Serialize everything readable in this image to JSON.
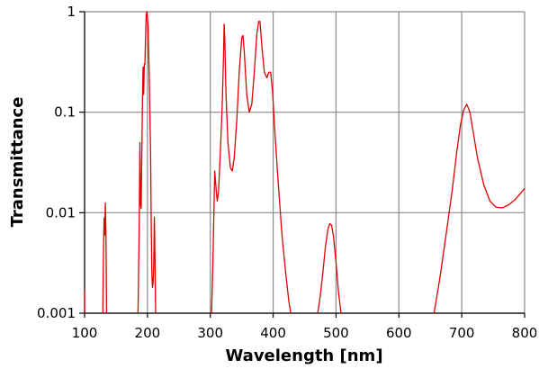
{
  "chart_data": {
    "type": "line",
    "xlabel": "Wavelength [nm]",
    "ylabel": "Transmittance",
    "xlim": [
      100,
      800
    ],
    "ylim": [
      0.001,
      1
    ],
    "yscale": "log",
    "grid": true,
    "x_tick_labels": [
      "100",
      "200",
      "300",
      "400",
      "500",
      "600",
      "700",
      "800"
    ],
    "y_tick_labels": [
      "0.001",
      "0.01",
      "0.1",
      "1"
    ],
    "series": [
      {
        "color": "#e00000",
        "segments": [
          [
            [
              100,
              0.0017
            ],
            [
              100,
              0.001
            ]
          ],
          [
            [
              129,
              0.001
            ],
            [
              130,
              0.004
            ],
            [
              131,
              0.0088
            ],
            [
              132,
              0.006
            ],
            [
              133,
              0.0125
            ],
            [
              134,
              0.006
            ],
            [
              135,
              0.001
            ]
          ],
          [
            [
              185,
              0.001
            ],
            [
              187,
              0.008
            ],
            [
              188,
              0.05
            ],
            [
              189,
              0.012
            ],
            [
              190,
              0.011
            ],
            [
              192,
              0.12
            ],
            [
              193,
              0.28
            ],
            [
              194,
              0.15
            ],
            [
              195,
              0.3
            ],
            [
              196,
              0.3
            ],
            [
              197,
              0.55
            ],
            [
              198,
              0.92
            ],
            [
              199,
              1.0
            ],
            [
              201,
              0.75
            ],
            [
              203,
              0.2
            ],
            [
              205,
              0.04
            ],
            [
              206,
              0.008
            ],
            [
              207,
              0.0025
            ],
            [
              208,
              0.0018
            ],
            [
              209,
              0.002
            ],
            [
              210,
              0.003
            ],
            [
              211,
              0.009
            ],
            [
              212,
              0.0035
            ],
            [
              213,
              0.001
            ]
          ],
          [
            [
              302,
              0.001
            ],
            [
              304,
              0.003
            ],
            [
              306,
              0.012
            ],
            [
              307,
              0.026
            ],
            [
              309,
              0.018
            ],
            [
              311,
              0.013
            ],
            [
              313,
              0.016
            ],
            [
              316,
              0.04
            ],
            [
              319,
              0.12
            ],
            [
              321,
              0.35
            ],
            [
              322,
              0.75
            ],
            [
              323,
              0.55
            ],
            [
              325,
              0.15
            ],
            [
              328,
              0.05
            ],
            [
              332,
              0.028
            ],
            [
              335,
              0.026
            ],
            [
              338,
              0.035
            ],
            [
              342,
              0.08
            ],
            [
              346,
              0.25
            ],
            [
              350,
              0.55
            ],
            [
              352,
              0.58
            ],
            [
              354,
              0.4
            ],
            [
              358,
              0.15
            ],
            [
              362,
              0.1
            ],
            [
              366,
              0.12
            ],
            [
              370,
              0.25
            ],
            [
              374,
              0.6
            ],
            [
              377,
              0.8
            ],
            [
              379,
              0.8
            ],
            [
              382,
              0.45
            ],
            [
              386,
              0.25
            ],
            [
              390,
              0.22
            ],
            [
              393,
              0.25
            ],
            [
              396,
              0.25
            ],
            [
              399,
              0.16
            ],
            [
              403,
              0.06
            ],
            [
              408,
              0.02
            ],
            [
              414,
              0.006
            ],
            [
              420,
              0.0025
            ],
            [
              425,
              0.0013
            ],
            [
              428,
              0.001
            ]
          ],
          [
            [
              471,
              0.001
            ],
            [
              475,
              0.0015
            ],
            [
              479,
              0.0025
            ],
            [
              483,
              0.0045
            ],
            [
              487,
              0.0068
            ],
            [
              490,
              0.0078
            ],
            [
              493,
              0.0075
            ],
            [
              496,
              0.0058
            ],
            [
              500,
              0.0032
            ],
            [
              504,
              0.0016
            ],
            [
              508,
              0.001
            ]
          ],
          [
            [
              656,
              0.001
            ],
            [
              665,
              0.0022
            ],
            [
              675,
              0.006
            ],
            [
              685,
              0.017
            ],
            [
              692,
              0.04
            ],
            [
              698,
              0.075
            ],
            [
              703,
              0.105
            ],
            [
              708,
              0.12
            ],
            [
              713,
              0.1
            ],
            [
              718,
              0.065
            ],
            [
              725,
              0.035
            ],
            [
              735,
              0.019
            ],
            [
              745,
              0.013
            ],
            [
              755,
              0.0113
            ],
            [
              765,
              0.0112
            ],
            [
              775,
              0.012
            ],
            [
              785,
              0.0135
            ],
            [
              795,
              0.016
            ],
            [
              800,
              0.0175
            ]
          ]
        ]
      }
    ]
  }
}
